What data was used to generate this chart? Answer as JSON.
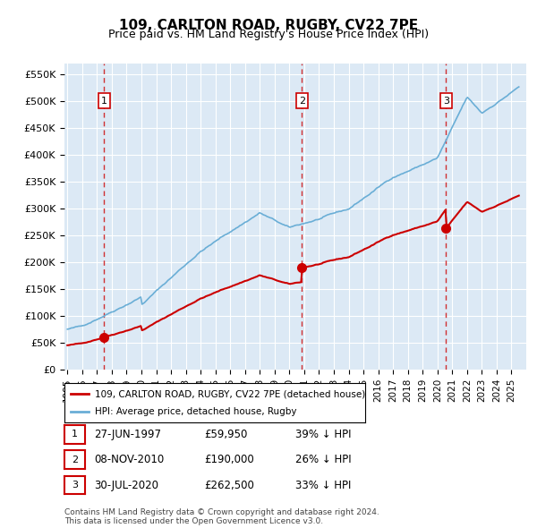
{
  "title": "109, CARLTON ROAD, RUGBY, CV22 7PE",
  "subtitle": "Price paid vs. HM Land Registry's House Price Index (HPI)",
  "ylabel": "",
  "ylim": [
    0,
    570000
  ],
  "yticks": [
    0,
    50000,
    100000,
    150000,
    200000,
    250000,
    300000,
    350000,
    400000,
    450000,
    500000,
    550000
  ],
  "ytick_labels": [
    "£0",
    "£50K",
    "£100K",
    "£150K",
    "£200K",
    "£250K",
    "£300K",
    "£350K",
    "£400K",
    "£450K",
    "£500K",
    "£550K"
  ],
  "bg_color": "#dce9f5",
  "plot_bg": "#dce9f5",
  "grid_color": "#ffffff",
  "hpi_color": "#6aaed6",
  "price_color": "#cc0000",
  "sale_marker_color": "#cc0000",
  "dashed_line_color": "#cc0000",
  "legend_box_color": "#ffffff",
  "transactions": [
    {
      "date": 1997.49,
      "price": 59950,
      "label": "1"
    },
    {
      "date": 2010.85,
      "price": 190000,
      "label": "2"
    },
    {
      "date": 2020.58,
      "price": 262500,
      "label": "3"
    }
  ],
  "table_rows": [
    {
      "num": "1",
      "date": "27-JUN-1997",
      "price": "£59,950",
      "hpi": "39% ↓ HPI"
    },
    {
      "num": "2",
      "date": "08-NOV-2010",
      "price": "£190,000",
      "hpi": "26% ↓ HPI"
    },
    {
      "num": "3",
      "date": "30-JUL-2020",
      "price": "£262,500",
      "hpi": "33% ↓ HPI"
    }
  ],
  "footer": "Contains HM Land Registry data © Crown copyright and database right 2024.\nThis data is licensed under the Open Government Licence v3.0.",
  "legend_entries": [
    "109, CARLTON ROAD, RUGBY, CV22 7PE (detached house)",
    "HPI: Average price, detached house, Rugby"
  ]
}
